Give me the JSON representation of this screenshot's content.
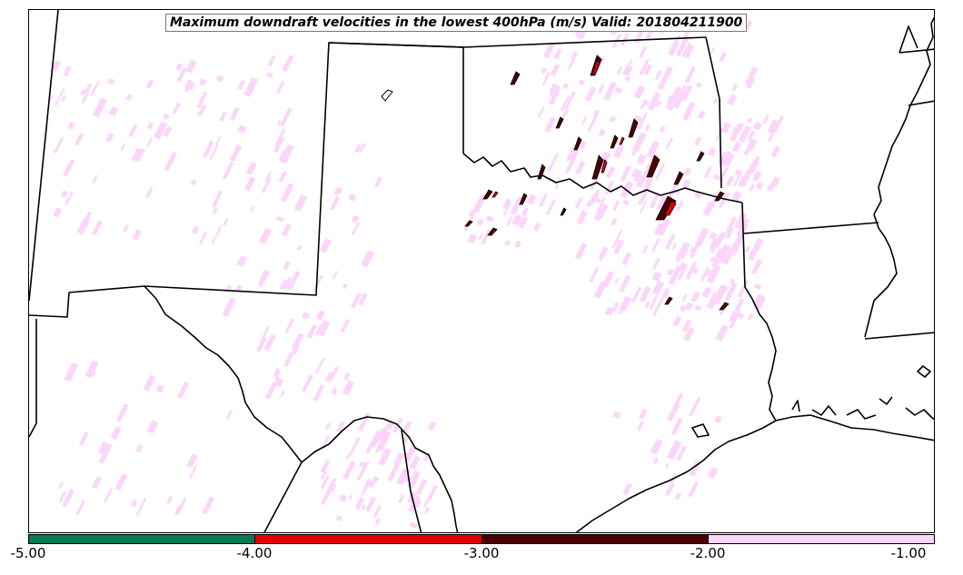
{
  "title": "Maximum downdraft velocities in the lowest 400hPa (m/s) Valid: 201804211900",
  "colorbar": {
    "segments": [
      {
        "range": [
          -5.0,
          -4.0
        ],
        "color": "#047b52"
      },
      {
        "range": [
          -4.0,
          -3.0
        ],
        "color": "#e40000"
      },
      {
        "range": [
          -3.0,
          -2.0
        ],
        "color": "#4a0002"
      },
      {
        "range": [
          -2.0,
          -1.0
        ],
        "color": "#fbd6fa"
      }
    ],
    "ticks": [
      "-5.00",
      "-4.00",
      "-3.00",
      "-2.00",
      "-1.00"
    ]
  },
  "colors": {
    "border": "#000000",
    "light_field": "#fbd6fa",
    "moderate_field": "#4a0002",
    "strong_field": "#e40000",
    "extreme_field": "#047b52"
  }
}
